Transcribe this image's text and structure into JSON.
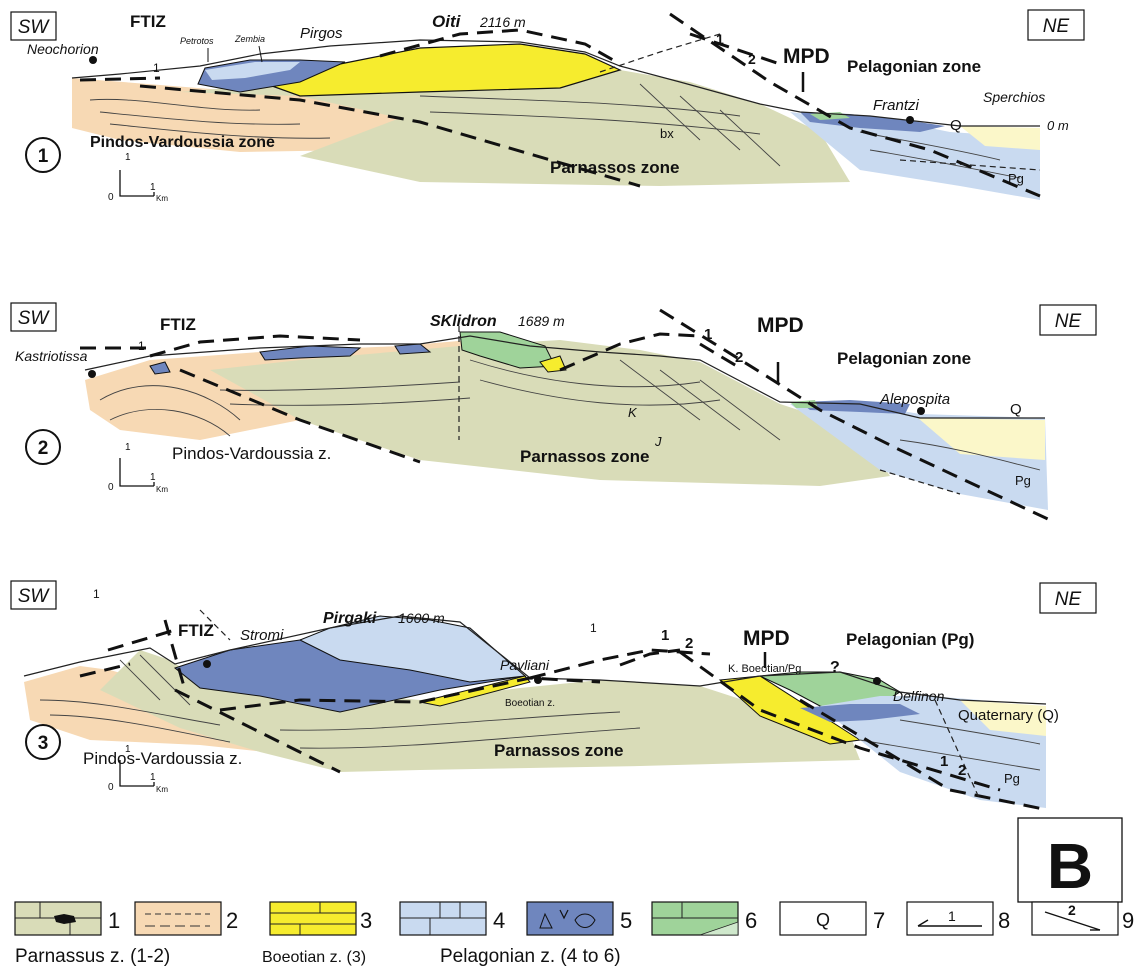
{
  "panel_letter": "B",
  "sections": [
    {
      "number": "1",
      "sw": "SW",
      "ne": "NE",
      "ftiz": "FTIZ",
      "mpd": "MPD",
      "peak": "Oiti",
      "elev": "2116 m",
      "towns": [
        "Neochorion",
        "Pirgos",
        "Petrotos",
        "Zembia",
        "Frantzi",
        "Sperchios"
      ],
      "zones": {
        "pindos": "Pindos-Vardoussia zone",
        "parnassos": "Parnassos zone",
        "pelagonian": "Pelagonian zone"
      },
      "marks": {
        "bx": "bx",
        "q": "Q",
        "pg": "Pg",
        "sea": "0 m",
        "fault1": "1",
        "fault2": "2",
        "faultL": "1"
      },
      "scale": {
        "v": "1",
        "h": "1",
        "zero": "0",
        "unit": "Km"
      }
    },
    {
      "number": "2",
      "sw": "SW",
      "ne": "NE",
      "ftiz": "FTIZ",
      "mpd": "MPD",
      "peak": "SKlidron",
      "elev": "1689 m",
      "towns": [
        "Kastriotissa",
        "Alepospita"
      ],
      "zones": {
        "pindos": "Pindos-Vardoussia z.",
        "parnassos": "Parnassos zone",
        "pelagonian": "Pelagonian zone"
      },
      "marks": {
        "k": "K",
        "j": "J",
        "q": "Q",
        "pg": "Pg",
        "fault1": "1",
        "fault2": "2",
        "faultL": "1"
      },
      "scale": {
        "v": "1",
        "h": "1",
        "zero": "0",
        "unit": "Km"
      }
    },
    {
      "number": "3",
      "sw": "SW",
      "ne": "NE",
      "ftiz": "FTIZ",
      "mpd": "MPD",
      "peak": "Pirgaki",
      "elev": "1600 m",
      "towns": [
        "Stromi",
        "Pavliani",
        "Delfinon"
      ],
      "zones": {
        "pindos": "Pindos-Vardoussia z.",
        "parnassos": "Parnassos zone",
        "pelagonian": "Pelagonian (Pg)",
        "boeotian": "Boeotian z.",
        "kboeotian": "K. Boeotian/Pg",
        "quaternary": "Quaternary (Q)"
      },
      "marks": {
        "q_mark": "?",
        "pg": "Pg",
        "fault1": "1",
        "fault2": "2",
        "faultL": "1",
        "faultM": "1",
        "faultA": "1",
        "faultB": "2"
      },
      "scale": {
        "v": "1",
        "h": "1",
        "zero": "0",
        "unit": "Km"
      }
    }
  ],
  "legend": {
    "items": [
      {
        "num": "1",
        "color": "#d9dcb8"
      },
      {
        "num": "2",
        "color": "#f7d9b4"
      },
      {
        "num": "3",
        "color": "#f6ec2e"
      },
      {
        "num": "4",
        "color": "#c9daf0"
      },
      {
        "num": "5",
        "color": "#6f86be"
      },
      {
        "num": "6",
        "color": "#9fd39a"
      },
      {
        "num": "7",
        "color": "#ffffff"
      },
      {
        "num": "8",
        "color": "#ffffff"
      },
      {
        "num": "9",
        "color": "#ffffff"
      }
    ],
    "box_q": "Q",
    "box_8": "1",
    "box_9": "2",
    "groups": [
      "Parnassus z. (1-2)",
      "Boeotian z. (3)",
      "Pelagonian z. (4 to 6)"
    ]
  },
  "colors": {
    "parnassos": "#d9dcb8",
    "pindos": "#f7d9b4",
    "boeotian": "#f6ec2e",
    "pelagonian_light": "#c9daf0",
    "pelagonian_dark": "#6f86be",
    "green": "#9fd39a",
    "quaternary": "#fbf7c9",
    "pg": "#c9daf0"
  }
}
